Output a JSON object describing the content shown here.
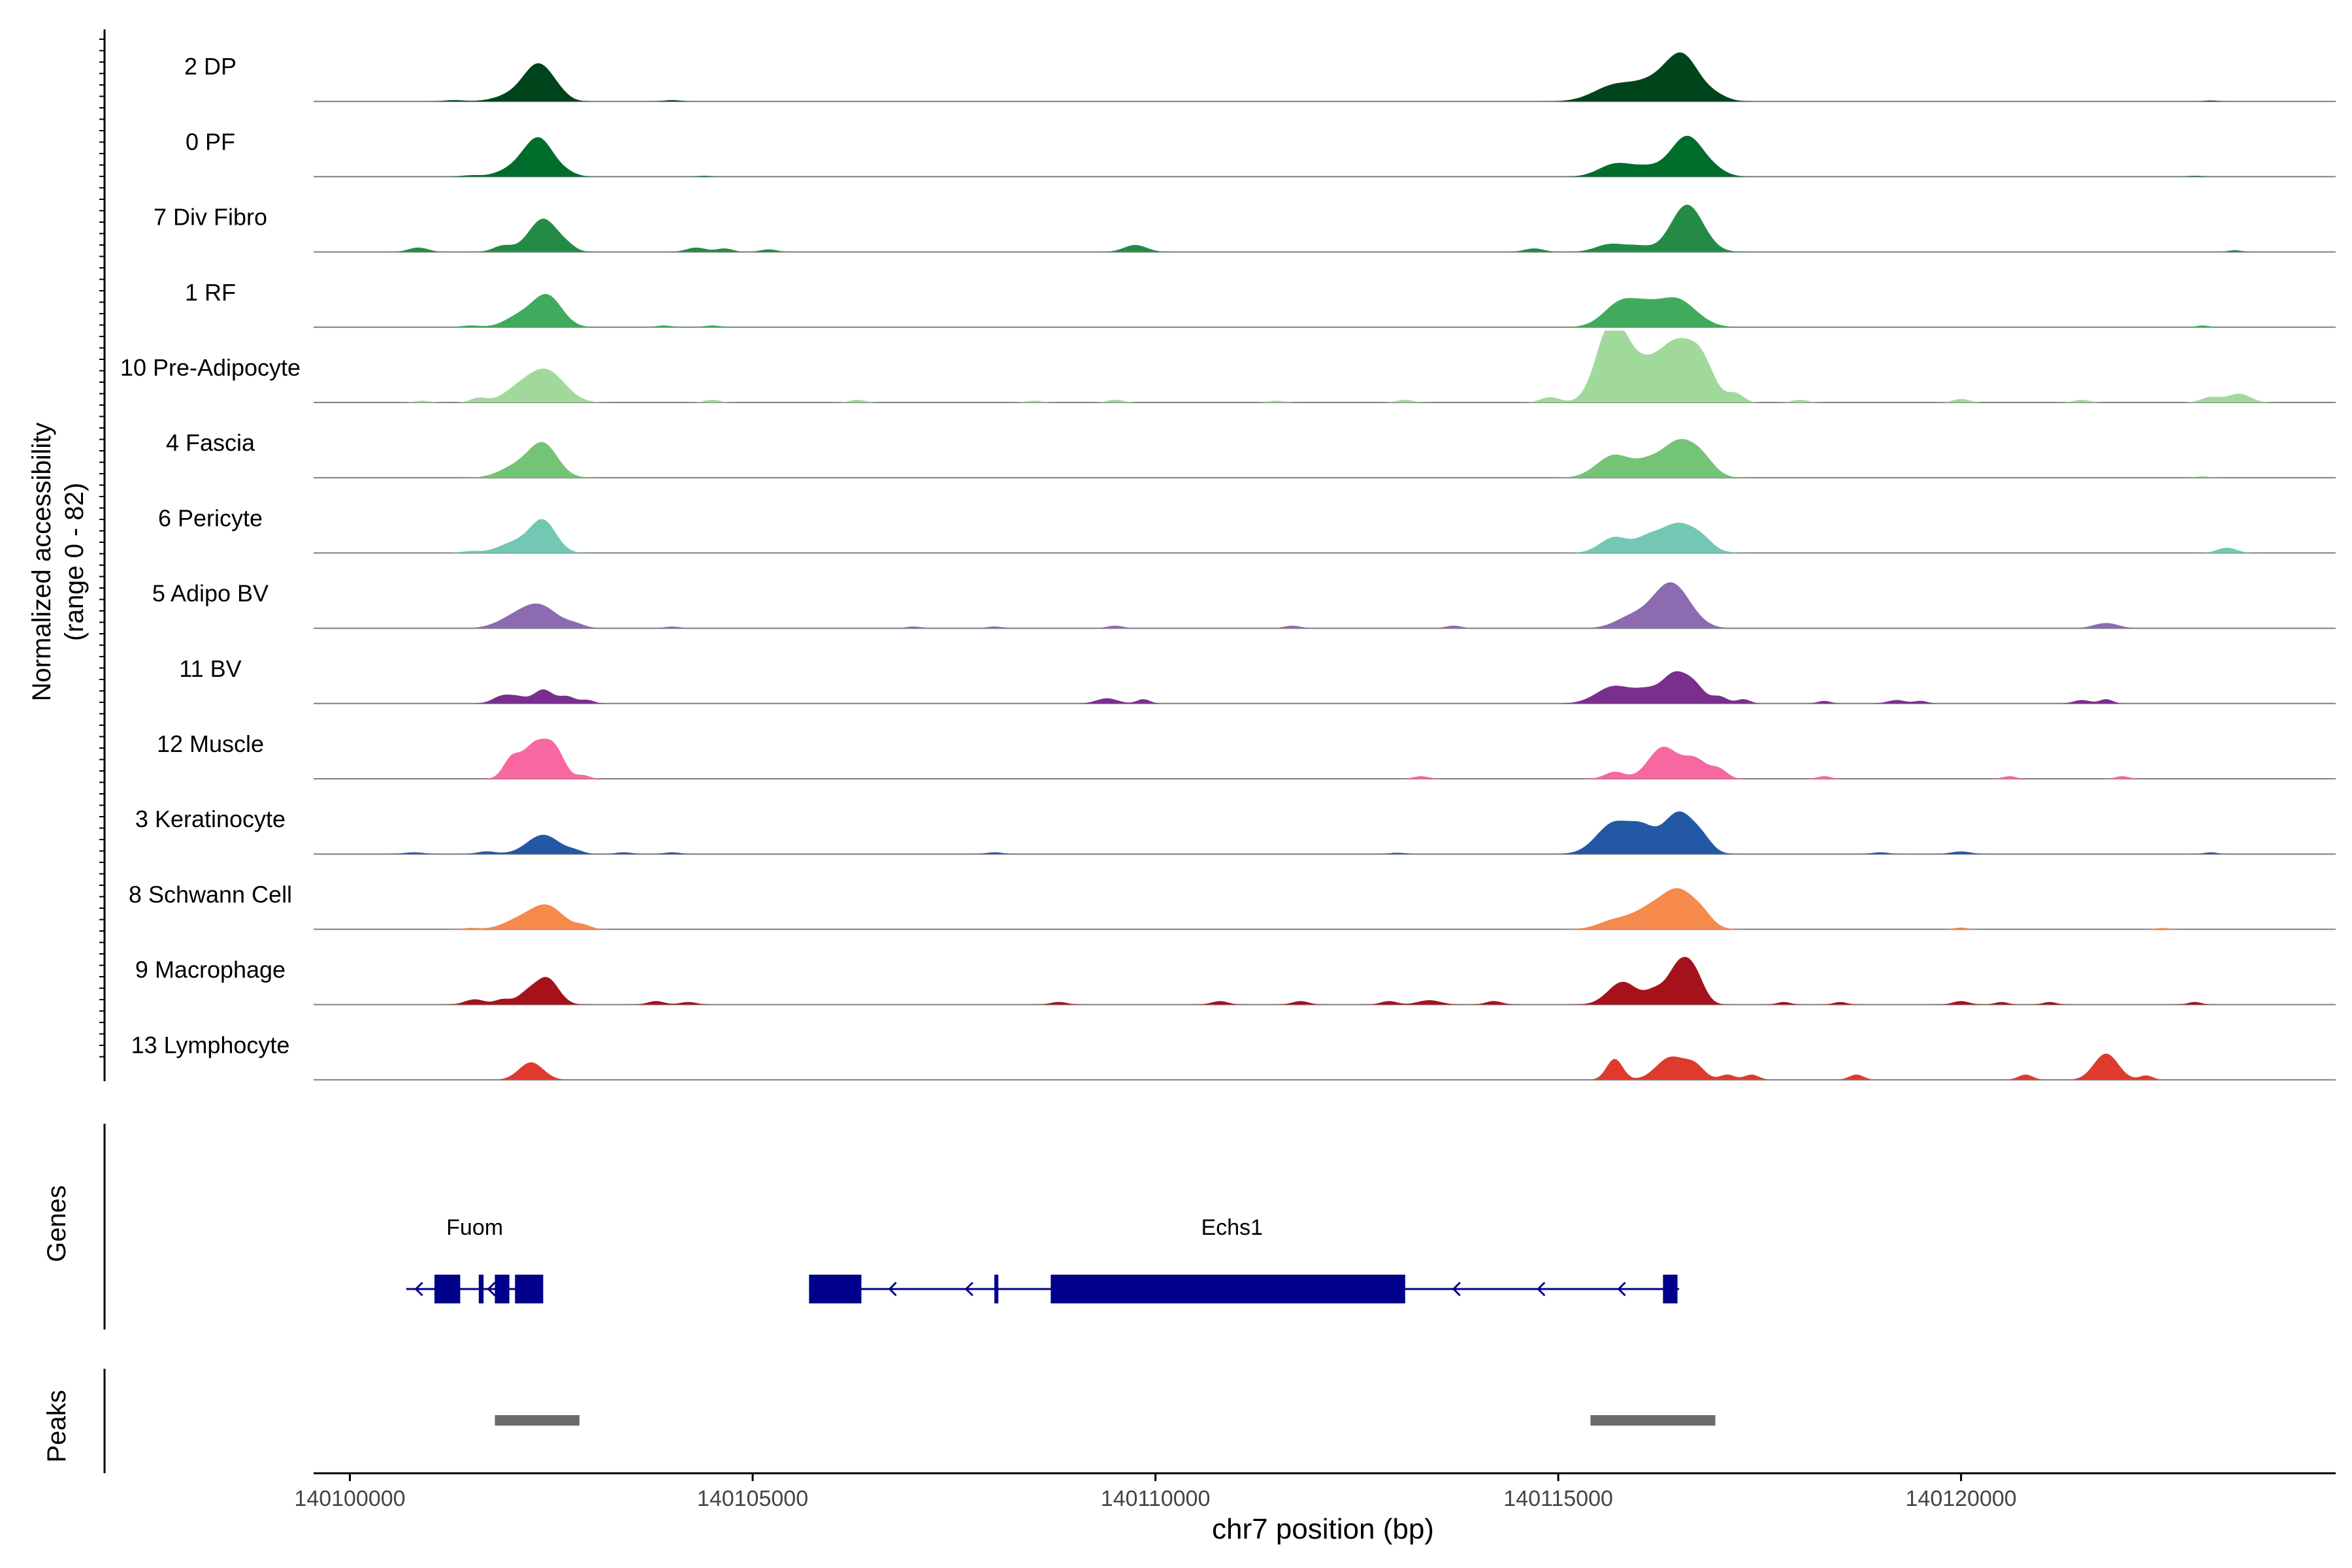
{
  "chart_data": {
    "type": "area",
    "title": "",
    "xlabel": "chr7 position (bp)",
    "ylabel_line1": "Normalized accessibility",
    "ylabel_line2": "(range 0 - 82)",
    "xlim": [
      140099550,
      140124650
    ],
    "ylim": [
      0,
      82
    ],
    "x_ticks": [
      140100000,
      140105000,
      140110000,
      140115000,
      140120000
    ],
    "x_tick_labels": [
      "140100000",
      "140105000",
      "140110000",
      "140115000",
      "140120000"
    ],
    "series": [
      {
        "name": "2 DP",
        "color": "#00441b",
        "peaks": [
          [
            140101300,
            1.5,
            120
          ],
          [
            140102050,
            8,
            220
          ],
          [
            140102350,
            40,
            180
          ],
          [
            140102600,
            4,
            120
          ],
          [
            140115700,
            18,
            260
          ],
          [
            140116200,
            20,
            240
          ],
          [
            140116550,
            48,
            200
          ],
          [
            140116950,
            6,
            150
          ],
          [
            140104000,
            1.5,
            100
          ],
          [
            140123100,
            1,
            80
          ]
        ]
      },
      {
        "name": "0 PF",
        "color": "#006d2c",
        "peaks": [
          [
            140101500,
            1.5,
            120
          ],
          [
            140102050,
            9,
            200
          ],
          [
            140102350,
            42,
            180
          ],
          [
            140102700,
            3,
            120
          ],
          [
            140115700,
            14,
            200
          ],
          [
            140116100,
            10,
            200
          ],
          [
            140116600,
            46,
            200
          ],
          [
            140116950,
            5,
            150
          ],
          [
            140104400,
            1,
            80
          ],
          [
            140122900,
            1,
            80
          ]
        ]
      },
      {
        "name": "7 Div Fibro",
        "color": "#238b45",
        "peaks": [
          [
            140100850,
            5,
            120
          ],
          [
            140101900,
            7,
            120
          ],
          [
            140102400,
            38,
            180
          ],
          [
            140102700,
            4,
            100
          ],
          [
            140104300,
            5,
            120
          ],
          [
            140104650,
            4,
            100
          ],
          [
            140105200,
            3,
            100
          ],
          [
            140109750,
            8,
            140
          ],
          [
            140114700,
            4,
            120
          ],
          [
            140115650,
            9,
            180
          ],
          [
            140116000,
            6,
            150
          ],
          [
            140116600,
            54,
            200
          ],
          [
            140123400,
            2,
            80
          ]
        ]
      },
      {
        "name": "1 RF",
        "color": "#41ab5d",
        "peaks": [
          [
            140101500,
            2,
            120
          ],
          [
            140102100,
            12,
            180
          ],
          [
            140102450,
            36,
            180
          ],
          [
            140103900,
            2,
            100
          ],
          [
            140104500,
            2,
            100
          ],
          [
            140115800,
            30,
            220
          ],
          [
            140116100,
            8,
            150
          ],
          [
            140116450,
            33,
            250
          ],
          [
            140123000,
            2,
            80
          ]
        ]
      },
      {
        "name": "10 Pre-Adipocyte",
        "color": "#a1d99b",
        "peaks": [
          [
            140100900,
            2,
            100
          ],
          [
            140101600,
            5,
            100
          ],
          [
            140102100,
            14,
            200
          ],
          [
            140102450,
            35,
            220
          ],
          [
            140104500,
            3,
            100
          ],
          [
            140106300,
            3,
            100
          ],
          [
            140108500,
            2,
            100
          ],
          [
            140109500,
            3,
            100
          ],
          [
            140111500,
            2,
            100
          ],
          [
            140113100,
            3,
            100
          ],
          [
            140114900,
            6,
            120
          ],
          [
            140115650,
            80,
            180
          ],
          [
            140116000,
            40,
            250
          ],
          [
            140116500,
            64,
            230
          ],
          [
            140116800,
            30,
            150
          ],
          [
            140117200,
            10,
            100
          ],
          [
            140118000,
            3,
            100
          ],
          [
            140120000,
            4,
            100
          ],
          [
            140121500,
            3,
            100
          ],
          [
            140123100,
            6,
            120
          ],
          [
            140123450,
            10,
            140
          ]
        ]
      },
      {
        "name": "4 Fascia",
        "color": "#74c476",
        "peaks": [
          [
            140102050,
            12,
            200
          ],
          [
            140102400,
            38,
            180
          ],
          [
            140115700,
            26,
            220
          ],
          [
            140116100,
            10,
            150
          ],
          [
            140116500,
            42,
            230
          ],
          [
            140116800,
            12,
            150
          ],
          [
            140123000,
            1.5,
            80
          ]
        ]
      },
      {
        "name": "6 Pericyte",
        "color": "#74c8b3",
        "peaks": [
          [
            140101500,
            2,
            120
          ],
          [
            140102050,
            12,
            200
          ],
          [
            140102400,
            36,
            160
          ],
          [
            140115700,
            18,
            180
          ],
          [
            140116100,
            12,
            150
          ],
          [
            140116500,
            34,
            240
          ],
          [
            140116800,
            6,
            120
          ],
          [
            140123300,
            6,
            120
          ]
        ]
      },
      {
        "name": "5 Adipo BV",
        "color": "#8c6bb1",
        "peaks": [
          [
            140102000,
            9,
            200
          ],
          [
            140102350,
            26,
            220
          ],
          [
            140102800,
            4,
            120
          ],
          [
            140104000,
            2,
            100
          ],
          [
            140107000,
            2,
            100
          ],
          [
            140108000,
            2,
            100
          ],
          [
            140109500,
            3,
            100
          ],
          [
            140111700,
            3,
            100
          ],
          [
            140113700,
            3,
            100
          ],
          [
            140115900,
            12,
            200
          ],
          [
            140116400,
            52,
            230
          ],
          [
            140121800,
            6,
            150
          ]
        ]
      },
      {
        "name": "11 BV",
        "color": "#7a2f8e",
        "peaks": [
          [
            140101900,
            9,
            120
          ],
          [
            140102100,
            6,
            100
          ],
          [
            140102400,
            16,
            120
          ],
          [
            140102700,
            8,
            100
          ],
          [
            140102950,
            4,
            80
          ],
          [
            140109400,
            6,
            130
          ],
          [
            140109850,
            5,
            80
          ],
          [
            140115700,
            20,
            220
          ],
          [
            140116100,
            12,
            150
          ],
          [
            140116450,
            34,
            160
          ],
          [
            140116700,
            16,
            120
          ],
          [
            140117000,
            8,
            100
          ],
          [
            140117300,
            5,
            80
          ],
          [
            140118300,
            3,
            80
          ],
          [
            140119200,
            4,
            110
          ],
          [
            140119500,
            3,
            80
          ],
          [
            140121500,
            4,
            100
          ],
          [
            140121800,
            5,
            80
          ]
        ]
      },
      {
        "name": "12 Muscle",
        "color": "#f768a1",
        "peaks": [
          [
            140102000,
            20,
            100
          ],
          [
            140102300,
            40,
            160
          ],
          [
            140102550,
            28,
            120
          ],
          [
            140102900,
            4,
            80
          ],
          [
            140113300,
            3,
            90
          ],
          [
            140115700,
            8,
            120
          ],
          [
            140116300,
            36,
            180
          ],
          [
            140116700,
            22,
            150
          ],
          [
            140117000,
            10,
            100
          ],
          [
            140118300,
            3,
            80
          ],
          [
            140120600,
            3,
            80
          ],
          [
            140122000,
            3,
            80
          ]
        ]
      },
      {
        "name": "3 Keratinocyte",
        "color": "#2358a5",
        "peaks": [
          [
            140100800,
            2,
            120
          ],
          [
            140101700,
            3,
            120
          ],
          [
            140102400,
            22,
            200
          ],
          [
            140102800,
            3,
            100
          ],
          [
            140103400,
            2,
            100
          ],
          [
            140104000,
            2,
            100
          ],
          [
            140108000,
            2,
            100
          ],
          [
            140113000,
            1.5,
            100
          ],
          [
            140115700,
            36,
            220
          ],
          [
            140116050,
            22,
            150
          ],
          [
            140116500,
            48,
            200
          ],
          [
            140116800,
            10,
            120
          ],
          [
            140119000,
            2,
            100
          ],
          [
            140120000,
            3,
            120
          ],
          [
            140123100,
            2,
            80
          ]
        ]
      },
      {
        "name": "8 Schwann Cell",
        "color": "#f6894c",
        "peaks": [
          [
            140101500,
            1.5,
            100
          ],
          [
            140102100,
            10,
            200
          ],
          [
            140102450,
            26,
            200
          ],
          [
            140102900,
            4,
            100
          ],
          [
            140115700,
            10,
            200
          ],
          [
            140116100,
            18,
            200
          ],
          [
            140116500,
            44,
            220
          ],
          [
            140116800,
            8,
            120
          ],
          [
            140120000,
            2,
            80
          ],
          [
            140122500,
            1.5,
            80
          ]
        ]
      },
      {
        "name": "9 Macrophage",
        "color": "#a5121c",
        "peaks": [
          [
            140101550,
            6,
            120
          ],
          [
            140101900,
            6,
            100
          ],
          [
            140102200,
            12,
            120
          ],
          [
            140102450,
            30,
            140
          ],
          [
            140103800,
            4,
            100
          ],
          [
            140104200,
            3,
            100
          ],
          [
            140108800,
            3,
            100
          ],
          [
            140110800,
            4,
            100
          ],
          [
            140111800,
            4,
            100
          ],
          [
            140112900,
            4,
            100
          ],
          [
            140113400,
            5,
            140
          ],
          [
            140114200,
            4,
            100
          ],
          [
            140115800,
            26,
            180
          ],
          [
            140116200,
            14,
            120
          ],
          [
            140116500,
            44,
            140
          ],
          [
            140116700,
            28,
            120
          ],
          [
            140117800,
            3,
            80
          ],
          [
            140118500,
            3,
            80
          ],
          [
            140120000,
            4,
            100
          ],
          [
            140120500,
            3,
            80
          ],
          [
            140121100,
            3,
            80
          ],
          [
            140122900,
            3,
            80
          ]
        ]
      },
      {
        "name": "13 Lymphocyte",
        "color": "#de3b2e",
        "peaks": [
          [
            140102250,
            20,
            150
          ],
          [
            140115700,
            24,
            100
          ],
          [
            140116400,
            26,
            180
          ],
          [
            140116700,
            14,
            120
          ],
          [
            140117100,
            6,
            90
          ],
          [
            140117400,
            6,
            90
          ],
          [
            140118700,
            6,
            90
          ],
          [
            140120800,
            6,
            90
          ],
          [
            140121800,
            30,
            150
          ],
          [
            140122300,
            5,
            80
          ]
        ]
      }
    ],
    "genes_track": {
      "label": "Genes",
      "color": "#00008b",
      "genes": [
        {
          "name": "Fuom",
          "start": 140100700,
          "end": 140102400,
          "strand": "-",
          "exons": [
            [
              140101050,
              140101370
            ],
            [
              140101600,
              140101660
            ],
            [
              140101800,
              140101980
            ],
            [
              140102050,
              140102400
            ]
          ],
          "label_pos": 140101550
        },
        {
          "name": "Echs1",
          "start": 140105700,
          "end": 140116500,
          "strand": "-",
          "exons": [
            [
              140105700,
              140106350
            ],
            [
              140108000,
              140108050
            ],
            [
              140108700,
              140113100
            ],
            [
              140116300,
              140116480
            ]
          ],
          "label_pos": 140110950
        }
      ]
    },
    "peaks_track": {
      "label": "Peaks",
      "color": "#6b6b6b",
      "regions": [
        [
          140101800,
          140102850
        ],
        [
          140115400,
          140116950
        ]
      ]
    },
    "grid": false,
    "legend": "none"
  }
}
